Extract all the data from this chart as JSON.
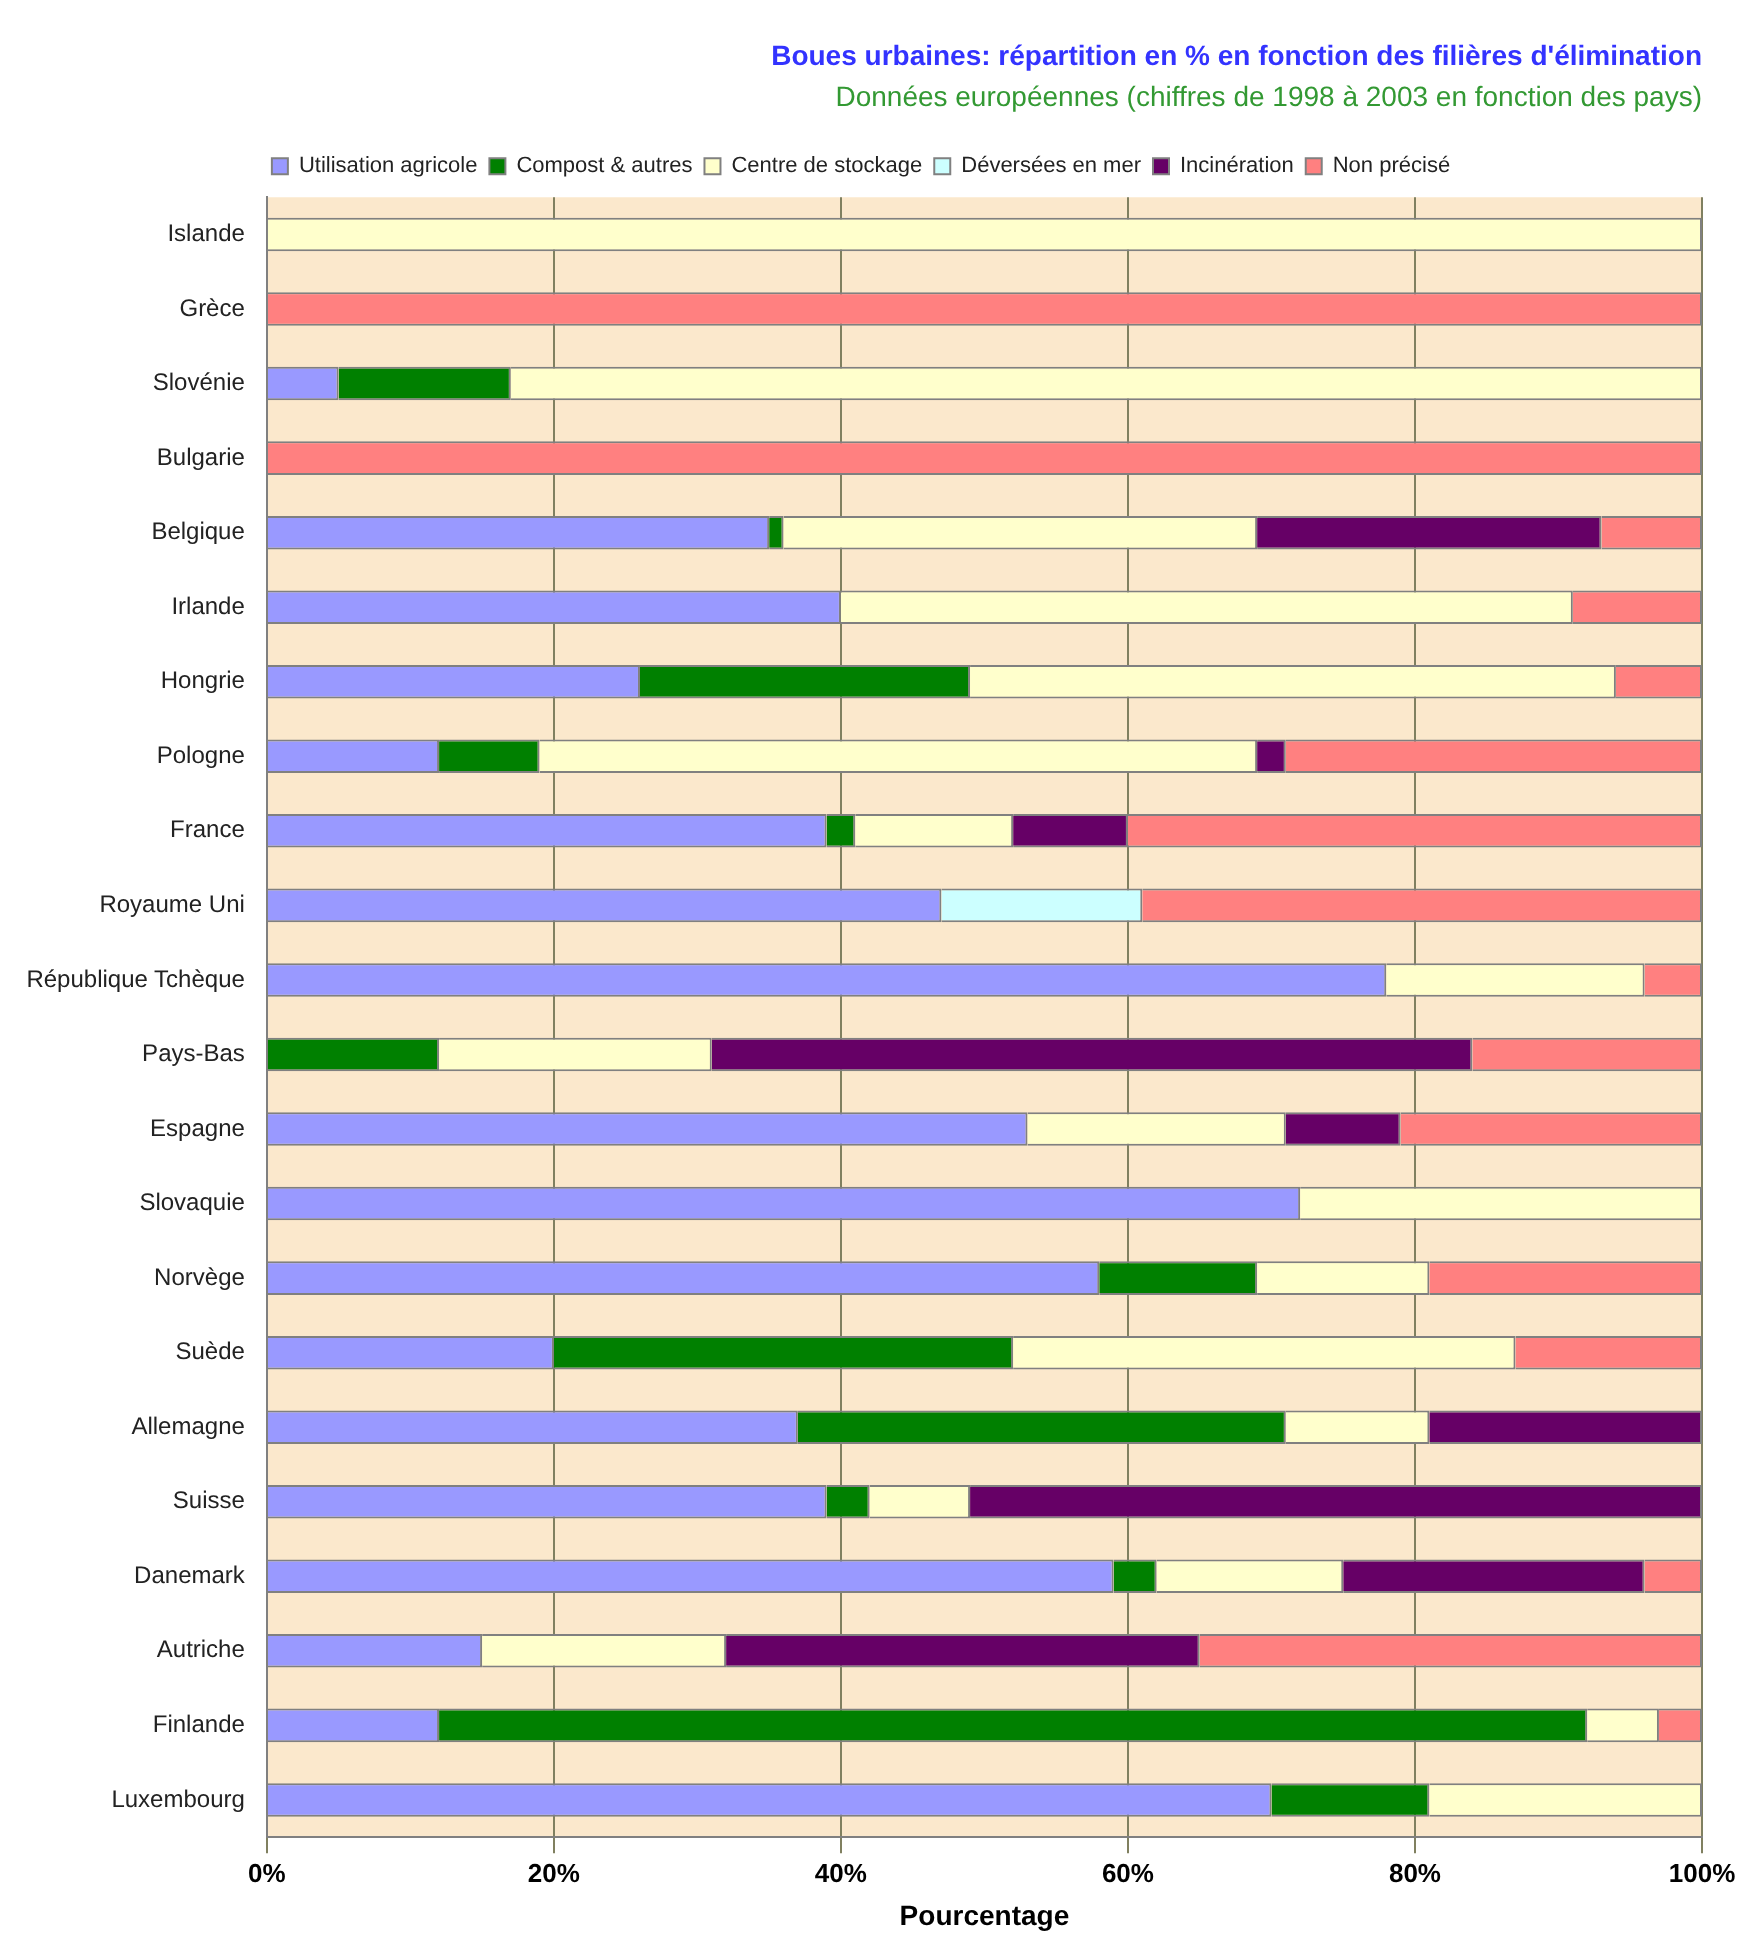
{
  "chart_data": {
    "type": "bar",
    "orientation": "horizontal",
    "stacked": true,
    "title": "Boues urbaines: répartition en % en fonction des filières d'élimination",
    "subtitle": "Données européennes (chiffres de 1998 à 2003 en fonction des pays)",
    "xlabel": "Pourcentage",
    "categories": [
      "Islande",
      "Grèce",
      "Slovénie",
      "Bulgarie",
      "Belgique",
      "Irlande",
      "Hongrie",
      "Pologne",
      "France",
      "Royaume Uni",
      "République Tchèque",
      "Pays-Bas",
      "Espagne",
      "Slovaquie",
      "Norvège",
      "Suède",
      "Allemagne",
      "Suisse",
      "Danemark",
      "Autriche",
      "Finlande",
      "Luxembourg"
    ],
    "series": [
      {
        "name": "Utilisation agricole",
        "color": "#9999ff",
        "values": [
          null,
          null,
          5,
          null,
          35,
          40,
          26,
          12,
          39,
          47,
          78,
          null,
          53,
          72,
          58,
          20,
          37,
          39,
          59,
          15,
          12,
          70
        ]
      },
      {
        "name": "Compost & autres",
        "color": "#008000",
        "values": [
          null,
          null,
          12,
          null,
          1,
          null,
          23,
          7,
          2,
          null,
          null,
          12,
          null,
          null,
          11,
          32,
          34,
          3,
          3,
          null,
          80,
          11
        ]
      },
      {
        "name": "Centre de stockage",
        "color": "#ffffcc",
        "values": [
          100,
          null,
          83,
          null,
          33,
          51,
          45,
          50,
          11,
          null,
          18,
          19,
          18,
          28,
          12,
          35,
          10,
          7,
          13,
          17,
          5,
          19
        ]
      },
      {
        "name": "Déversées en mer",
        "color": "#ccffff",
        "values": [
          null,
          null,
          null,
          null,
          null,
          null,
          null,
          null,
          null,
          14,
          null,
          null,
          null,
          null,
          null,
          null,
          null,
          null,
          null,
          null,
          null,
          null
        ]
      },
      {
        "name": "Incinération",
        "color": "#660066",
        "values": [
          null,
          null,
          null,
          null,
          24,
          null,
          null,
          2,
          8,
          null,
          null,
          53,
          8,
          null,
          null,
          null,
          19,
          51,
          21,
          33,
          null,
          null
        ]
      },
      {
        "name": "Non précisé",
        "color": "#ff8080",
        "values": [
          null,
          100,
          null,
          100,
          7,
          9,
          6,
          29,
          40,
          39,
          4,
          16,
          21,
          null,
          19,
          13,
          null,
          null,
          4,
          35,
          3,
          null
        ]
      }
    ],
    "xlim": [
      0,
      100
    ],
    "xticks": [
      {
        "value": 0,
        "label": "0%"
      },
      {
        "value": 20,
        "label": "20%"
      },
      {
        "value": 40,
        "label": "40%"
      },
      {
        "value": 60,
        "label": "60%"
      },
      {
        "value": 80,
        "label": "80%"
      },
      {
        "value": 100,
        "label": "100%"
      }
    ],
    "grid": "x",
    "legend": "top"
  }
}
